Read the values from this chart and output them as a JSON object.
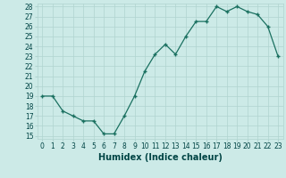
{
  "x": [
    0,
    1,
    2,
    3,
    4,
    5,
    6,
    7,
    8,
    9,
    10,
    11,
    12,
    13,
    14,
    15,
    16,
    17,
    18,
    19,
    20,
    21,
    22,
    23
  ],
  "y": [
    19,
    19,
    17.5,
    17,
    16.5,
    16.5,
    15.2,
    15.2,
    17,
    19,
    21.5,
    23.2,
    24.2,
    23.2,
    25,
    26.5,
    26.5,
    28,
    27.5,
    28,
    27.5,
    27.2,
    26,
    23
  ],
  "xlabel": "Humidex (Indice chaleur)",
  "ylim_min": 15,
  "ylim_max": 28,
  "xlim_min": 0,
  "xlim_max": 23,
  "yticks": [
    15,
    16,
    17,
    18,
    19,
    20,
    21,
    22,
    23,
    24,
    25,
    26,
    27,
    28
  ],
  "xticks": [
    0,
    1,
    2,
    3,
    4,
    5,
    6,
    7,
    8,
    9,
    10,
    11,
    12,
    13,
    14,
    15,
    16,
    17,
    18,
    19,
    20,
    21,
    22,
    23
  ],
  "line_color": "#1a7060",
  "bg_color": "#cceae7",
  "grid_color": "#b0d4d0",
  "xlabel_fontsize": 7,
  "tick_fontsize": 5.5
}
